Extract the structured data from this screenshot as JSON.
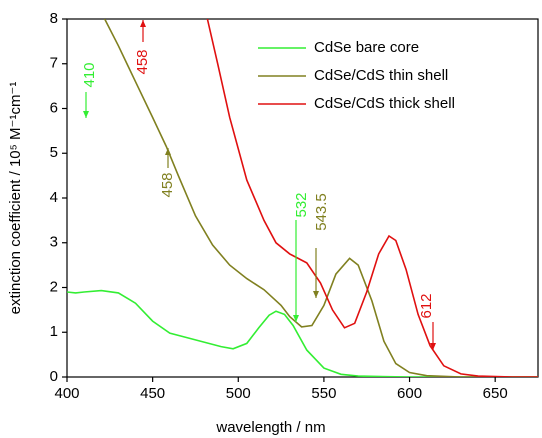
{
  "chart_data": {
    "type": "line",
    "xlabel": "wavelength / nm",
    "ylabel": "extinction coefficient / 10⁵ M⁻¹cm⁻¹",
    "xlim": [
      400,
      675
    ],
    "xticks": [
      400,
      450,
      500,
      550,
      600,
      650
    ],
    "ylim": [
      0,
      8
    ],
    "yticks": [
      0,
      1,
      2,
      3,
      4,
      5,
      6,
      7,
      8
    ],
    "legend": "upper right",
    "series": [
      {
        "name": "CdSe bare core",
        "color": "#33ee33",
        "x": [
          400,
          405,
          410,
          420,
          430,
          440,
          450,
          460,
          470,
          480,
          490,
          497,
          505,
          512,
          518,
          522,
          527,
          532,
          540,
          550,
          560,
          570,
          600,
          675
        ],
        "values": [
          1.9,
          1.88,
          1.9,
          1.93,
          1.88,
          1.65,
          1.25,
          0.98,
          0.88,
          0.78,
          0.68,
          0.63,
          0.75,
          1.1,
          1.38,
          1.47,
          1.4,
          1.15,
          0.6,
          0.2,
          0.06,
          0.02,
          0,
          0
        ]
      },
      {
        "name": "CdSe/CdS thin shell",
        "color": "#808020",
        "x": [
          422,
          430,
          440,
          450,
          458,
          465,
          475,
          485,
          495,
          505,
          515,
          525,
          530,
          537,
          543,
          550,
          557,
          565,
          570,
          578,
          585,
          592,
          600,
          610,
          630,
          675
        ],
        "values": [
          8,
          7.4,
          6.6,
          5.8,
          5.15,
          4.5,
          3.6,
          2.95,
          2.5,
          2.2,
          1.95,
          1.6,
          1.35,
          1.12,
          1.15,
          1.6,
          2.3,
          2.65,
          2.5,
          1.7,
          0.8,
          0.3,
          0.1,
          0.03,
          0,
          0
        ]
      },
      {
        "name": "CdSe/CdS thick shell",
        "color": "#e01010",
        "x": [
          482,
          488,
          495,
          505,
          515,
          522,
          530,
          540,
          548,
          555,
          562,
          568,
          575,
          582,
          588,
          592,
          598,
          605,
          612,
          620,
          630,
          640,
          660,
          675
        ],
        "values": [
          8,
          7,
          5.8,
          4.4,
          3.5,
          3.0,
          2.75,
          2.55,
          2.1,
          1.5,
          1.1,
          1.2,
          1.9,
          2.75,
          3.15,
          3.05,
          2.4,
          1.4,
          0.7,
          0.25,
          0.07,
          0.02,
          0,
          0
        ]
      }
    ],
    "annotations": [
      {
        "text": "410",
        "color": "#33ee33"
      },
      {
        "text": "458",
        "color": "#e01010"
      },
      {
        "text": "458",
        "color": "#808020"
      },
      {
        "text": "532",
        "color": "#33ee33"
      },
      {
        "text": "543.5",
        "color": "#808020"
      },
      {
        "text": "612",
        "color": "#e01010"
      }
    ]
  }
}
